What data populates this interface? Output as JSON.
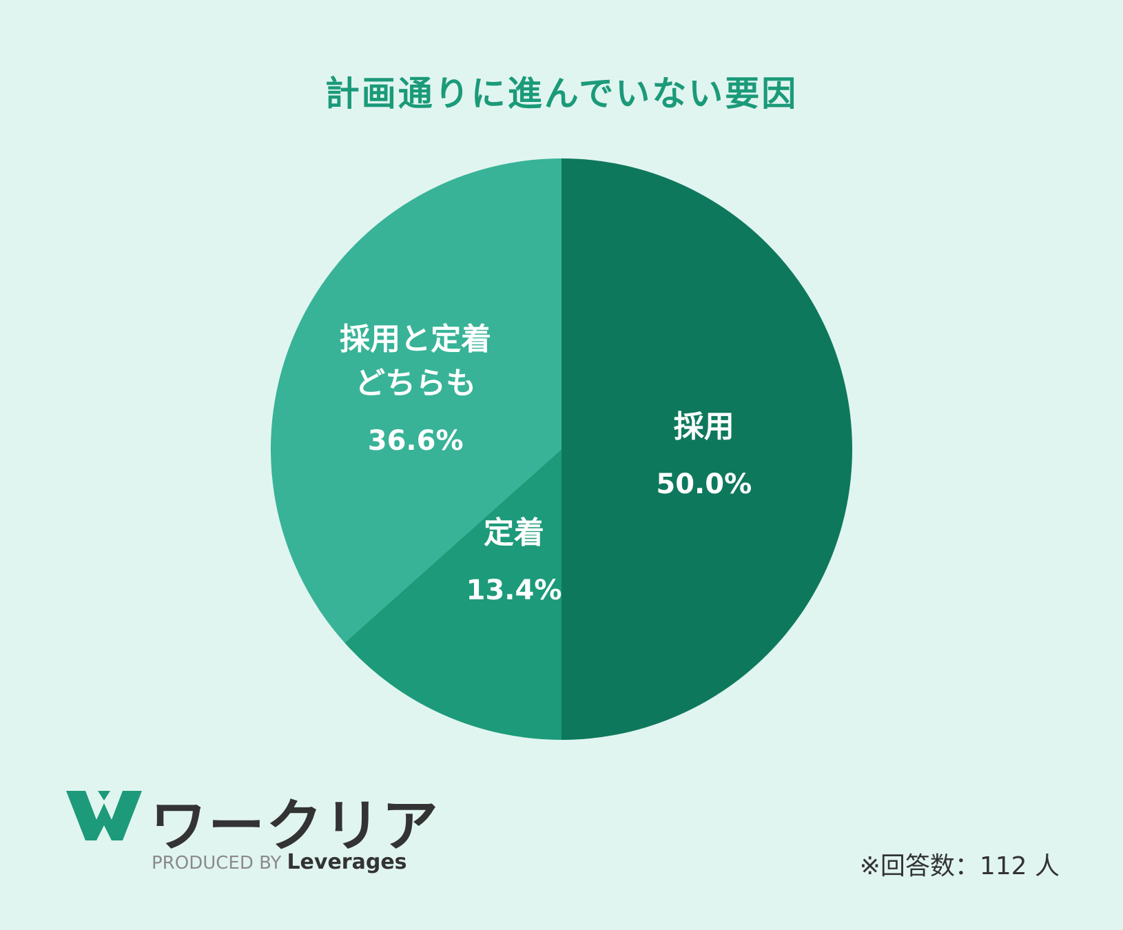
{
  "chart_data": {
    "type": "pie",
    "title": "計画通りに進んでいない要因",
    "slices": [
      {
        "label": [
          "採用"
        ],
        "value_text": "50.0%",
        "value": 50.0,
        "color": "#0e785d"
      },
      {
        "label": [
          "定着"
        ],
        "value_text": "13.4%",
        "value": 13.4,
        "color": "#1c9a7a"
      },
      {
        "label": [
          "採用と定着",
          "どちらも"
        ],
        "value_text": "36.6%",
        "value": 36.6,
        "color": "#38b397"
      }
    ]
  },
  "logo": {
    "name": "ワークリア",
    "produced_by": "PRODUCED BY",
    "brand": "Leverages",
    "mark_color": "#1c9a7a"
  },
  "footnote": "※回答数：112 人"
}
